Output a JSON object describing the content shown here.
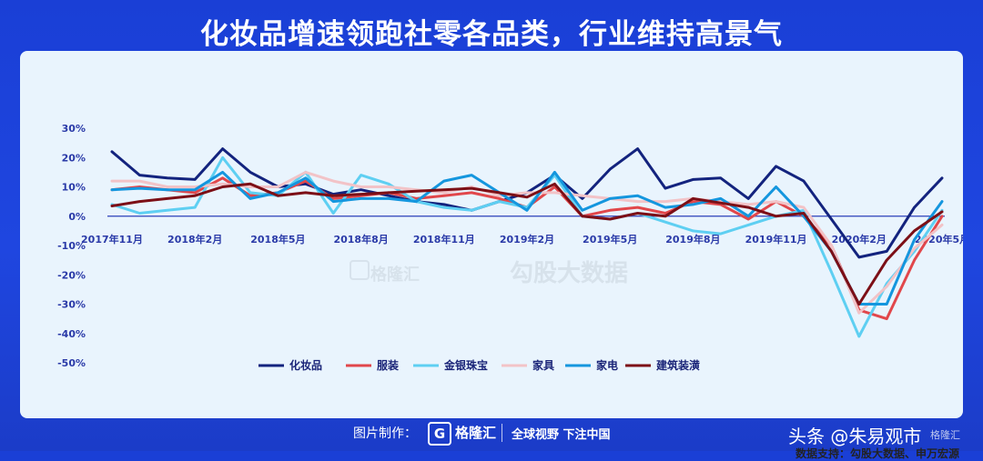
{
  "title": "化妆品增速领跑社零各品类，行业维持高景气",
  "source_text": "数据支持：勾股大数据、申万宏源",
  "watermark": {
    "logo_text": "格隆汇",
    "text2": "勾股大数据"
  },
  "footer": {
    "made_by": "图片制作：",
    "logo_text": "格隆汇",
    "slogan": "全球视野 下注中国",
    "tag": "头条 @朱易观市",
    "corner_watermark": "格隆汇"
  },
  "chart_data": {
    "type": "line",
    "ylim": [
      -0.5,
      0.3
    ],
    "yticks": [
      "30%",
      "20%",
      "10%",
      "0%",
      "-10%",
      "-20%",
      "-30%",
      "-40%",
      "-50%"
    ],
    "ytick_values": [
      0.3,
      0.2,
      0.1,
      0,
      -0.1,
      -0.2,
      -0.3,
      -0.4,
      -0.5
    ],
    "x_labels": [
      "2017年11月",
      "2018年2月",
      "2018年5月",
      "2018年8月",
      "2018年11月",
      "2019年2月",
      "2019年5月",
      "2019年8月",
      "2019年11月",
      "2020年2月",
      "2020年5月"
    ],
    "x_label_index": [
      0,
      3,
      6,
      9,
      12,
      15,
      18,
      21,
      24,
      27,
      30
    ],
    "x_count": 31,
    "legend_position": "bottom",
    "series": [
      {
        "name": "化妆品",
        "color": "#13237e",
        "values": [
          0.22,
          0.14,
          0.13,
          0.125,
          0.23,
          0.15,
          0.1,
          0.11,
          0.075,
          0.09,
          0.07,
          0.05,
          0.04,
          0.02,
          0.05,
          0.08,
          0.14,
          0.06,
          0.16,
          0.23,
          0.095,
          0.125,
          0.13,
          0.06,
          0.17,
          0.12,
          -0.01,
          -0.14,
          -0.12,
          0.03,
          0.13
        ]
      },
      {
        "name": "服装",
        "color": "#e1474b",
        "values": [
          0.09,
          0.1,
          0.09,
          0.08,
          0.13,
          0.07,
          0.08,
          0.12,
          0.06,
          0.07,
          0.08,
          0.06,
          0.07,
          0.08,
          0.06,
          0.03,
          0.1,
          0.0,
          0.02,
          0.03,
          0.01,
          0.05,
          0.04,
          -0.01,
          0.05,
          0.0,
          -0.1,
          -0.32,
          -0.35,
          -0.15,
          0.0
        ]
      },
      {
        "name": "金银珠宝",
        "color": "#5ecff2",
        "values": [
          0.04,
          0.01,
          0.02,
          0.03,
          0.2,
          0.08,
          0.07,
          0.15,
          0.01,
          0.14,
          0.11,
          0.05,
          0.03,
          0.02,
          0.05,
          0.03,
          0.14,
          0.0,
          -0.01,
          0.01,
          -0.02,
          -0.05,
          -0.06,
          -0.03,
          0.0,
          0.02,
          -0.19,
          -0.41,
          -0.23,
          -0.12,
          0.02
        ]
      },
      {
        "name": "家具",
        "color": "#f2c3c7",
        "values": [
          0.12,
          0.12,
          0.1,
          0.1,
          0.11,
          0.1,
          0.1,
          0.15,
          0.12,
          0.1,
          0.1,
          0.09,
          0.08,
          0.1,
          0.07,
          0.08,
          0.08,
          0.07,
          0.06,
          0.05,
          0.05,
          0.06,
          0.05,
          0.04,
          0.05,
          0.03,
          -0.1,
          -0.33,
          -0.24,
          -0.11,
          -0.03
        ]
      },
      {
        "name": "家电",
        "color": "#1496de",
        "values": [
          0.09,
          0.095,
          0.09,
          0.09,
          0.15,
          0.06,
          0.08,
          0.13,
          0.05,
          0.06,
          0.06,
          0.05,
          0.12,
          0.14,
          0.08,
          0.02,
          0.15,
          0.02,
          0.06,
          0.07,
          0.03,
          0.04,
          0.06,
          0.0,
          0.1,
          0.0,
          -0.12,
          -0.3,
          -0.3,
          -0.08,
          0.05
        ]
      },
      {
        "name": "建筑装潢",
        "color": "#7c0f16",
        "values": [
          0.035,
          0.05,
          0.06,
          0.07,
          0.1,
          0.11,
          0.07,
          0.08,
          0.07,
          0.075,
          0.08,
          0.085,
          0.09,
          0.095,
          0.08,
          0.065,
          0.11,
          0.0,
          -0.01,
          0.01,
          0.0,
          0.06,
          0.045,
          0.03,
          0.0,
          0.01,
          -0.12,
          -0.3,
          -0.15,
          -0.05,
          0.015
        ]
      }
    ]
  }
}
